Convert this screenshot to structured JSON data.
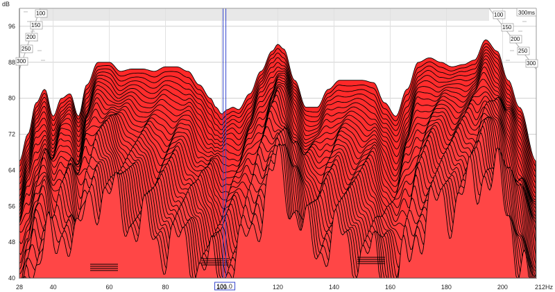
{
  "chart_data": {
    "type": "area",
    "subtype": "waterfall-csd",
    "y_unit": "dB",
    "x_unit": "Hz",
    "xlim": [
      28,
      212
    ],
    "ylim": [
      40,
      100
    ],
    "x_ticks": [
      "28",
      "40",
      "60",
      "80",
      "100",
      "120",
      "140",
      "160",
      "180",
      "200",
      "212Hz"
    ],
    "y_ticks": [
      "96",
      "88",
      "80",
      "72",
      "64",
      "56",
      "48",
      "40"
    ],
    "time_slices_ms": [
      "100",
      "150",
      "200",
      "250",
      "300"
    ],
    "time_unit_label": "300ms",
    "cursor": {
      "label": "101.0",
      "x": 101.0
    },
    "fill_color": "#ff3333",
    "line_color": "#000000",
    "cursor_color": "#3344cc",
    "back_curve": {
      "x": [
        28,
        31,
        34,
        37,
        40,
        43,
        46,
        49,
        52,
        56,
        60,
        64,
        68,
        72,
        76,
        80,
        84,
        88,
        92,
        96,
        98,
        100,
        102,
        104,
        106,
        110,
        114,
        118,
        120,
        122,
        126,
        130,
        134,
        138,
        142,
        146,
        150,
        154,
        158,
        162,
        166,
        170,
        174,
        178,
        182,
        186,
        190,
        194,
        198,
        202,
        206,
        212
      ],
      "y": [
        66,
        72,
        79,
        82,
        76,
        80,
        81,
        76,
        83,
        88,
        88,
        86,
        86.5,
        86.5,
        86,
        87,
        87,
        86,
        83,
        80,
        78,
        76.5,
        77.5,
        78,
        77.5,
        81,
        86,
        90.5,
        92,
        91,
        84,
        78,
        78,
        82,
        84,
        84,
        84,
        83.5,
        79,
        76,
        82,
        88,
        89,
        88,
        87,
        87.5,
        88.5,
        93,
        90.5,
        84,
        78,
        66
      ]
    }
  }
}
